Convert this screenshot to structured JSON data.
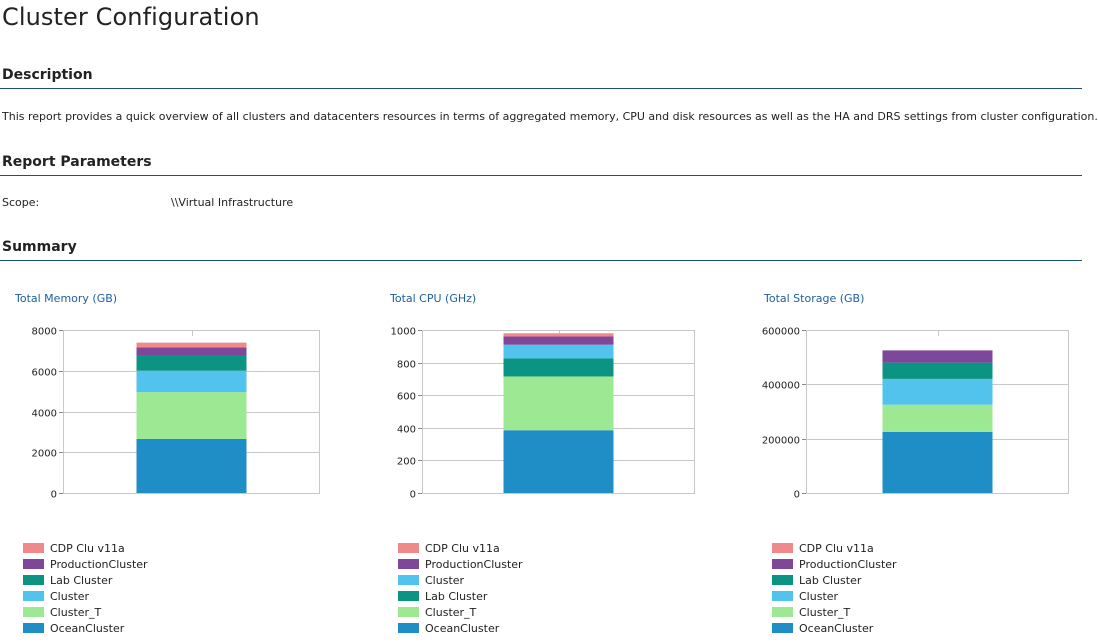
{
  "page": {
    "title": "Cluster Configuration"
  },
  "sections": {
    "description": "Description",
    "parameters": "Report Parameters",
    "summary": "Summary"
  },
  "description_text": "This report provides a quick overview of all clusters and datacenters resources in terms of aggregated memory, CPU and disk resources as well as the HA and DRS settings from cluster configuration.",
  "parameters": {
    "scope_label": "Scope:",
    "scope_value": "\\\\Virtual Infrastructure"
  },
  "colors": {
    "accent_rule": "#1f4e79",
    "chart_title": "#1f5f9e",
    "OceanCluster": "#1f8dc6",
    "Cluster_T": "#9de892",
    "Cluster": "#52c3ec",
    "Lab Cluster": "#0c9482",
    "ProductionCluster": "#7f479a",
    "CDP Clu v11a": "#f08a8a"
  },
  "chart_data": [
    {
      "type": "bar",
      "stacked": true,
      "title": "Total Memory (GB)",
      "ylim": [
        0,
        8000
      ],
      "yticks": [
        "0",
        "2000",
        "4000",
        "6000",
        "8000"
      ],
      "grid": true,
      "series": [
        {
          "name": "OceanCluster",
          "value": 2650
        },
        {
          "name": "Cluster_T",
          "value": 2300
        },
        {
          "name": "Cluster",
          "value": 1050
        },
        {
          "name": "Lab Cluster",
          "value": 750
        },
        {
          "name": "ProductionCluster",
          "value": 400
        },
        {
          "name": "CDP Clu v11a",
          "value": 230
        }
      ]
    },
    {
      "type": "bar",
      "stacked": true,
      "title": "Total CPU (GHz)",
      "ylim": [
        0,
        1000
      ],
      "yticks": [
        "0",
        "200",
        "400",
        "600",
        "800",
        "1000"
      ],
      "grid": true,
      "series": [
        {
          "name": "OceanCluster",
          "value": 385
        },
        {
          "name": "Cluster_T",
          "value": 330
        },
        {
          "name": "Lab Cluster",
          "value": 110
        },
        {
          "name": "Cluster",
          "value": 85
        },
        {
          "name": "ProductionCluster",
          "value": 50
        },
        {
          "name": "CDP Clu v11a",
          "value": 20
        }
      ]
    },
    {
      "type": "bar",
      "stacked": true,
      "title": "Total Storage (GB)",
      "ylim": [
        0,
        600000
      ],
      "yticks": [
        "0",
        "200000",
        "400000",
        "600000"
      ],
      "grid": true,
      "series": [
        {
          "name": "OceanCluster",
          "value": 225000
        },
        {
          "name": "Cluster_T",
          "value": 100000
        },
        {
          "name": "Cluster",
          "value": 95000
        },
        {
          "name": "Lab Cluster",
          "value": 60000
        },
        {
          "name": "ProductionCluster",
          "value": 45000
        },
        {
          "name": "CDP Clu v11a",
          "value": 0
        }
      ]
    }
  ]
}
